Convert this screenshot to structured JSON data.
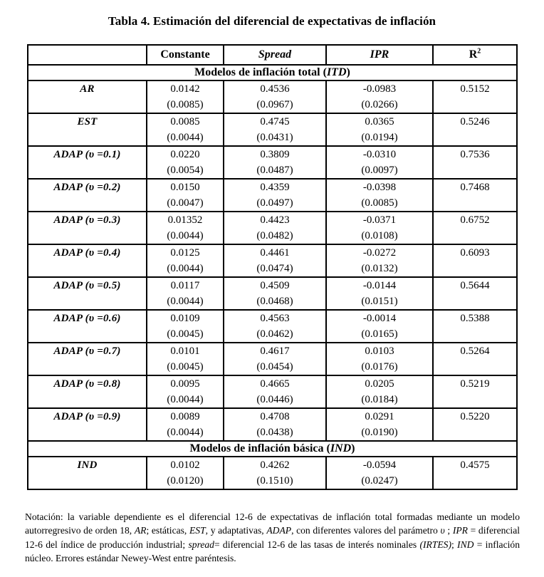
{
  "title": "Tabla 4. Estimación del diferencial de expectativas de inflación",
  "table": {
    "headers": {
      "empty": "",
      "constante": "Constante",
      "spread": "Spread",
      "ipr": "IPR",
      "r": "R",
      "r_sup": "2"
    },
    "sections": [
      {
        "header": [
          {
            "t": "Modelos de inflación total ("
          },
          {
            "t": "ITD",
            "i": true
          },
          {
            "t": ")"
          }
        ],
        "rows": [
          {
            "label": "AR",
            "cells": [
              [
                "0.0142",
                "(0.0085)"
              ],
              [
                "0.4536",
                "(0.0967)"
              ],
              [
                "-0.0983",
                "(0.0266)"
              ],
              [
                "0.5152",
                ""
              ]
            ]
          },
          {
            "label": "EST",
            "cells": [
              [
                "0.0085",
                "(0.0044)"
              ],
              [
                "0.4745",
                "(0.0431)"
              ],
              [
                "0.0365",
                "(0.0194)"
              ],
              [
                "0.5246",
                ""
              ]
            ]
          },
          {
            "label": "ADAP (υ =0.1)",
            "cells": [
              [
                "0.0220",
                "(0.0054)"
              ],
              [
                "0.3809",
                "(0.0487)"
              ],
              [
                "-0.0310",
                "(0.0097)"
              ],
              [
                "0.7536",
                ""
              ]
            ]
          },
          {
            "label": "ADAP (υ =0.2)",
            "cells": [
              [
                "0.0150",
                "(0.0047)"
              ],
              [
                "0.4359",
                "(0.0497)"
              ],
              [
                "-0.0398",
                "(0.0085)"
              ],
              [
                "0.7468",
                ""
              ]
            ]
          },
          {
            "label": "ADAP (υ =0.3)",
            "cells": [
              [
                "0.01352",
                "(0.0044)"
              ],
              [
                "0.4423",
                "(0.0482)"
              ],
              [
                "-0.0371",
                "(0.0108)"
              ],
              [
                "0.6752",
                ""
              ]
            ]
          },
          {
            "label": "ADAP (υ =0.4)",
            "cells": [
              [
                "0.0125",
                "(0.0044)"
              ],
              [
                "0.4461",
                "(0.0474)"
              ],
              [
                "-0.0272",
                "(0.0132)"
              ],
              [
                "0.6093",
                ""
              ]
            ]
          },
          {
            "label": "ADAP (υ =0.5)",
            "cells": [
              [
                "0.0117",
                "(0.0044)"
              ],
              [
                "0.4509",
                "(0.0468)"
              ],
              [
                "-0.0144",
                "(0.0151)"
              ],
              [
                "0.5644",
                ""
              ]
            ]
          },
          {
            "label": "ADAP (υ =0.6)",
            "cells": [
              [
                "0.0109",
                "(0.0045)"
              ],
              [
                "0.4563",
                "(0.0462)"
              ],
              [
                "-0.0014",
                "(0.0165)"
              ],
              [
                "0.5388",
                ""
              ]
            ]
          },
          {
            "label": "ADAP (υ =0.7)",
            "cells": [
              [
                "0.0101",
                "(0.0045)"
              ],
              [
                "0.4617",
                "(0.0454)"
              ],
              [
                "0.0103",
                "(0.0176)"
              ],
              [
                "0.5264",
                ""
              ]
            ]
          },
          {
            "label": "ADAP (υ =0.8)",
            "cells": [
              [
                "0.0095",
                "(0.0044)"
              ],
              [
                "0.4665",
                "(0.0446)"
              ],
              [
                "0.0205",
                "(0.0184)"
              ],
              [
                "0.5219",
                ""
              ]
            ]
          },
          {
            "label": "ADAP (υ =0.9)",
            "cells": [
              [
                "0.0089",
                "(0.0044)"
              ],
              [
                "0.4708",
                "(0.0438)"
              ],
              [
                "0.0291",
                "(0.0190)"
              ],
              [
                "0.5220",
                ""
              ]
            ]
          }
        ]
      },
      {
        "header": [
          {
            "t": "Modelos de inflación básica ("
          },
          {
            "t": "IND",
            "i": true
          },
          {
            "t": ")"
          }
        ],
        "rows": [
          {
            "label": "IND",
            "cells": [
              [
                "0.0102",
                "(0.0120)"
              ],
              [
                "0.4262",
                "(0.1510)"
              ],
              [
                "-0.0594",
                "(0.0247)"
              ],
              [
                "0.4575",
                ""
              ]
            ]
          }
        ]
      }
    ]
  },
  "footnote": [
    {
      "t": "Notación: la variable dependiente es el diferencial 12-6 de expectativas de inflación total formadas mediante un modelo autorregresivo de orden 18, "
    },
    {
      "t": "AR",
      "i": true
    },
    {
      "t": "; estáticas, "
    },
    {
      "t": "EST",
      "i": true
    },
    {
      "t": ", y adaptativas, "
    },
    {
      "t": "ADAP",
      "i": true
    },
    {
      "t": ", con diferentes valores del parámetro "
    },
    {
      "t": "υ",
      "i": true
    },
    {
      "t": " ; "
    },
    {
      "t": "IPR",
      "i": true
    },
    {
      "t": " = diferencial 12-6 del índice de producción industrial; "
    },
    {
      "t": "spread",
      "i": true
    },
    {
      "t": "= diferencial 12-6 de las tasas de interés nominales "
    },
    {
      "t": "(IRTES)",
      "i": true
    },
    {
      "t": "; "
    },
    {
      "t": "IND",
      "i": true
    },
    {
      "t": " = inflación núcleo. Errores estándar Newey-West entre paréntesis."
    }
  ]
}
